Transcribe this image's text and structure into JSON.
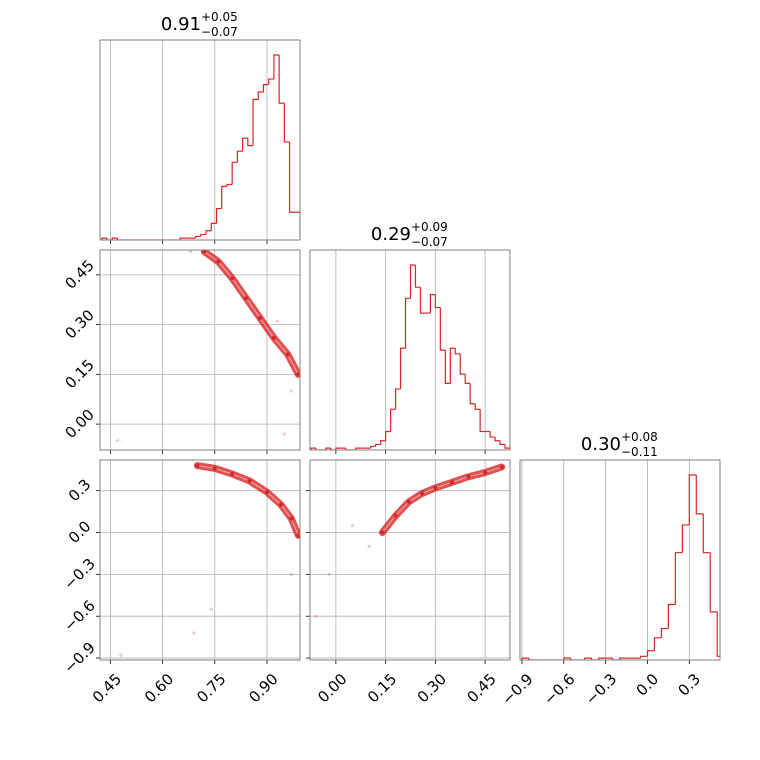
{
  "chart_data": {
    "type": "corner",
    "color": "#d62728",
    "grid": true,
    "axes": [
      {
        "lim": [
          0.42,
          0.995
        ],
        "ticks": [
          0.45,
          {
            "value": 0.6,
            "label": "0.60"
          },
          0.75,
          {
            "value": 0.9,
            "label": "0.90"
          }
        ]
      },
      {
        "lim": [
          -0.078,
          0.525
        ],
        "ticks": [
          {
            "value": 0,
            "label": "0.00"
          },
          0.15,
          {
            "value": 0.3,
            "label": "0.30"
          },
          0.45
        ]
      },
      {
        "lim": [
          -0.914,
          0.52
        ],
        "ticks": [
          {
            "value": -0.9,
            "label": "−0.9"
          },
          {
            "value": -0.6,
            "label": "−0.6"
          },
          {
            "value": -0.3,
            "label": "−0.3"
          },
          {
            "value": 0,
            "label": "0.0"
          },
          0.3
        ]
      }
    ],
    "diagonal": [
      {
        "title": {
          "value": "0.91",
          "upper": "+0.05",
          "lower": "−0.07"
        },
        "bins": [
          0.425,
          0.44,
          0.455,
          0.47,
          0.485,
          0.5,
          0.515,
          0.53,
          0.545,
          0.56,
          0.575,
          0.59,
          0.605,
          0.62,
          0.635,
          0.65,
          0.665,
          0.68,
          0.695,
          0.71,
          0.725,
          0.74,
          0.755,
          0.77,
          0.785,
          0.8,
          0.815,
          0.83,
          0.845,
          0.86,
          0.875,
          0.89,
          0.905,
          0.92,
          0.935,
          0.95,
          0.965,
          0.98,
          0.995
        ],
        "counts": [
          1,
          0,
          1,
          0,
          0,
          0,
          0,
          0,
          0,
          0,
          0,
          0,
          0,
          0,
          0,
          1,
          1,
          1,
          2,
          3,
          5,
          9,
          17,
          29,
          30,
          42,
          48,
          55,
          51,
          76,
          80,
          84,
          87,
          100,
          74,
          53,
          15,
          15
        ]
      },
      {
        "title": {
          "value": "0.29",
          "upper": "+0.09",
          "lower": "−0.07"
        },
        "bins": [
          -0.075,
          -0.06,
          -0.045,
          -0.03,
          -0.015,
          0,
          0.015,
          0.03,
          0.045,
          0.06,
          0.075,
          0.09,
          0.105,
          0.12,
          0.135,
          0.15,
          0.165,
          0.18,
          0.195,
          0.21,
          0.225,
          0.24,
          0.255,
          0.27,
          0.285,
          0.3,
          0.315,
          0.33,
          0.345,
          0.36,
          0.375,
          0.39,
          0.405,
          0.42,
          0.435,
          0.45,
          0.465,
          0.48,
          0.495,
          0.51,
          0.525
        ],
        "counts": [
          1,
          0,
          0,
          1,
          0,
          1,
          1,
          0,
          0,
          1,
          1,
          1,
          2,
          3,
          5,
          10,
          22,
          33,
          55,
          82,
          100,
          88,
          74,
          74,
          84,
          77,
          54,
          36,
          55,
          52,
          41,
          36,
          25,
          22,
          10,
          10,
          7,
          5,
          3,
          1
        ]
      },
      {
        "title": {
          "value": "0.30",
          "upper": "+0.08",
          "lower": "−0.11"
        },
        "bins": [
          -0.9,
          -0.85,
          -0.8,
          -0.75,
          -0.7,
          -0.65,
          -0.6,
          -0.55,
          -0.5,
          -0.45,
          -0.4,
          -0.35,
          -0.3,
          -0.25,
          -0.2,
          -0.15,
          -0.1,
          -0.05,
          0,
          0.05,
          0.1,
          0.15,
          0.2,
          0.25,
          0.3,
          0.35,
          0.4,
          0.45,
          0.5,
          0.55
        ],
        "counts": [
          1,
          0,
          0,
          0,
          0,
          0,
          1,
          0,
          0,
          1,
          0,
          1,
          1,
          0,
          1,
          1,
          1,
          2,
          5,
          12,
          17,
          30,
          58,
          73,
          100,
          79,
          58,
          26,
          2
        ]
      }
    ],
    "pairs": [
      {
        "x": [
          0.72,
          0.76,
          0.8,
          0.84,
          0.88,
          0.92,
          0.96,
          0.99
        ],
        "y": [
          0.52,
          0.49,
          0.44,
          0.38,
          0.32,
          0.26,
          0.21,
          0.15
        ],
        "outliers_x": [
          0.68,
          0.47,
          0.95,
          0.97,
          0.93
        ],
        "outliers_y": [
          0.52,
          -0.05,
          -0.03,
          0.1,
          0.31
        ]
      },
      {
        "x": [
          0.7,
          0.75,
          0.8,
          0.85,
          0.9,
          0.94,
          0.97,
          0.99
        ],
        "y": [
          0.48,
          0.46,
          0.42,
          0.37,
          0.29,
          0.2,
          0.1,
          -0.02
        ],
        "outliers_x": [
          0.69,
          0.74,
          0.48,
          0.97
        ],
        "outliers_y": [
          -0.72,
          -0.55,
          -0.88,
          -0.3
        ]
      },
      {
        "x": [
          0.14,
          0.18,
          0.22,
          0.26,
          0.3,
          0.35,
          0.4,
          0.45,
          0.5
        ],
        "y": [
          0,
          0.12,
          0.22,
          0.28,
          0.32,
          0.36,
          0.4,
          0.43,
          0.47
        ],
        "outliers_x": [
          0.05,
          -0.02,
          -0.06,
          0.1
        ],
        "outliers_y": [
          0.05,
          -0.3,
          -0.6,
          -0.1
        ]
      }
    ]
  }
}
